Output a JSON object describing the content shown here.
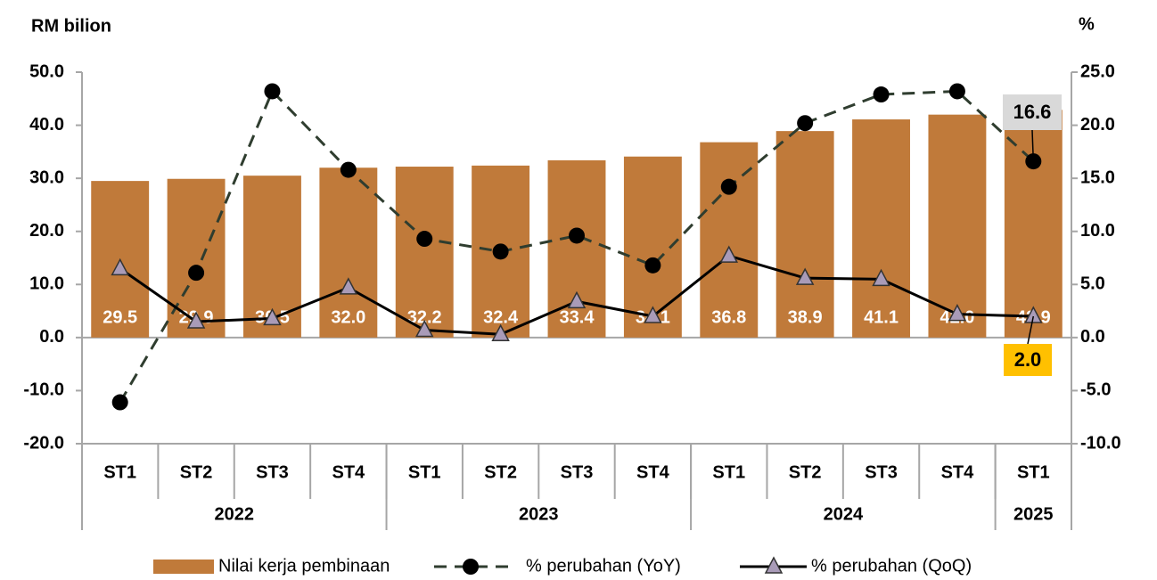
{
  "chart_data": {
    "type": "bar",
    "ylabel": "RM bilion",
    "y2label": "%",
    "categories": [
      "ST1",
      "ST2",
      "ST3",
      "ST4",
      "ST1",
      "ST2",
      "ST3",
      "ST4",
      "ST1",
      "ST2",
      "ST3",
      "ST4",
      "ST1"
    ],
    "groups": [
      {
        "label": "2022",
        "count": 4
      },
      {
        "label": "2023",
        "count": 4
      },
      {
        "label": "2024",
        "count": 4
      },
      {
        "label": "2025",
        "count": 1
      }
    ],
    "series": [
      {
        "name": "Nilai kerja pembinaan",
        "type": "bar",
        "color": "#c07a3a",
        "axis": "y",
        "values": [
          29.5,
          29.9,
          30.5,
          32.0,
          32.2,
          32.4,
          33.4,
          34.1,
          36.8,
          38.9,
          41.1,
          42.0,
          42.9
        ],
        "value_labels": [
          "29.5",
          "29.9",
          "30.5",
          "32.0",
          "32.2",
          "32.4",
          "33.4",
          "34.1",
          "36.8",
          "38.9",
          "41.1",
          "42.0",
          "42.9"
        ]
      },
      {
        "name": "% perubahan (YoY)",
        "type": "line",
        "style": "dashed",
        "marker": "circle",
        "color": "#2f3d2f",
        "axis": "y2",
        "values": [
          -6.1,
          6.1,
          23.2,
          15.8,
          9.3,
          8.1,
          9.6,
          6.8,
          14.2,
          20.2,
          22.9,
          23.2,
          16.6
        ],
        "value_labels": [
          null,
          null,
          null,
          null,
          null,
          null,
          null,
          null,
          null,
          null,
          null,
          null,
          "16.6"
        ]
      },
      {
        "name": "% perubahan (QoQ)",
        "type": "line",
        "style": "solid",
        "marker": "triangle",
        "color": "#000000",
        "axis": "y2",
        "values": [
          6.5,
          1.5,
          1.8,
          4.7,
          0.7,
          0.3,
          3.4,
          2.0,
          7.7,
          5.6,
          5.5,
          2.2,
          2.0
        ],
        "value_labels": [
          null,
          null,
          null,
          null,
          null,
          null,
          null,
          null,
          null,
          null,
          null,
          null,
          "2.0"
        ]
      }
    ],
    "ylim": [
      -20,
      50
    ],
    "yticks": [
      {
        "value": -20,
        "label": "-20.0"
      },
      {
        "value": -10,
        "label": "-10.0"
      },
      {
        "value": 0,
        "label": "0.0"
      },
      {
        "value": 10,
        "label": "10.0"
      },
      {
        "value": 20,
        "label": "20.0"
      },
      {
        "value": 30,
        "label": "30.0"
      },
      {
        "value": 40,
        "label": "40.0"
      },
      {
        "value": 50,
        "label": "50.0"
      }
    ],
    "y2lim": [
      -10,
      25
    ],
    "y2ticks": [
      {
        "value": -10,
        "label": "-10.0"
      },
      {
        "value": -5,
        "label": "-5.0"
      },
      {
        "value": 0,
        "label": "0.0"
      },
      {
        "value": 5,
        "label": "5.0"
      },
      {
        "value": 10,
        "label": "10.0"
      },
      {
        "value": 15,
        "label": "15.0"
      },
      {
        "value": 20,
        "label": "20.0"
      },
      {
        "value": 25,
        "label": "25.0"
      }
    ],
    "grid": false,
    "legend": "bottom"
  }
}
